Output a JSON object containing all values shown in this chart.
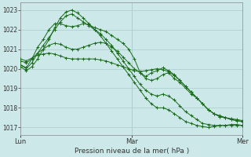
{
  "xlabel": "Pression niveau de la mer( hPa )",
  "background_color": "#cce8e8",
  "grid_color": "#aacccc",
  "line_color": "#1a6b1a",
  "ylim": [
    1016.6,
    1023.4
  ],
  "yticks": [
    1017,
    1018,
    1019,
    1020,
    1021,
    1022,
    1023
  ],
  "xlim": [
    0,
    96
  ],
  "xtick_positions": [
    0,
    48,
    96
  ],
  "xtick_labels": [
    "Lun",
    "Mar",
    "Mer"
  ],
  "series": [
    [
      1020.2,
      1020.05,
      1020.5,
      1021.1,
      1021.5,
      1022.0,
      1022.3,
      1022.3,
      1022.2,
      1022.15,
      1022.2,
      1022.3,
      1022.25,
      1022.1,
      1022.0,
      1021.9,
      1021.7,
      1021.5,
      1021.3,
      1021.0,
      1020.5,
      1019.8,
      1019.5,
      1019.4,
      1019.5,
      1019.7,
      1019.8,
      1019.5,
      1019.3,
      1019.0,
      1018.7,
      1018.5,
      1018.2,
      1017.9,
      1017.7,
      1017.6,
      1017.5,
      1017.4,
      1017.35,
      1017.3
    ],
    [
      1020.2,
      1020.0,
      1020.3,
      1020.8,
      1021.2,
      1021.6,
      1022.0,
      1022.4,
      1022.7,
      1022.8,
      1022.6,
      1022.4,
      1022.2,
      1022.0,
      1021.8,
      1021.5,
      1021.2,
      1020.8,
      1020.4,
      1020.0,
      1019.6,
      1019.2,
      1018.9,
      1018.7,
      1018.6,
      1018.7,
      1018.6,
      1018.4,
      1018.1,
      1017.8,
      1017.6,
      1017.4,
      1017.2,
      1017.15,
      1017.1,
      1017.1,
      1017.1,
      1017.15,
      1017.15,
      1017.1
    ],
    [
      1020.1,
      1019.9,
      1020.1,
      1020.5,
      1021.0,
      1021.5,
      1022.1,
      1022.6,
      1022.9,
      1023.0,
      1022.85,
      1022.6,
      1022.3,
      1022.0,
      1021.7,
      1021.3,
      1020.9,
      1020.5,
      1020.1,
      1019.7,
      1019.3,
      1018.9,
      1018.5,
      1018.2,
      1018.0,
      1018.0,
      1017.9,
      1017.7,
      1017.5,
      1017.3,
      1017.2,
      1017.1,
      1017.05,
      1017.0,
      1017.05,
      1017.1,
      1017.1,
      1017.1,
      1017.1,
      1017.1
    ],
    [
      1020.4,
      1020.3,
      1020.5,
      1020.8,
      1021.0,
      1021.2,
      1021.3,
      1021.25,
      1021.1,
      1021.0,
      1021.0,
      1021.1,
      1021.2,
      1021.3,
      1021.35,
      1021.3,
      1021.1,
      1020.9,
      1020.6,
      1020.3,
      1020.0,
      1019.8,
      1019.6,
      1019.8,
      1019.9,
      1020.05,
      1019.9,
      1019.7,
      1019.4,
      1019.1,
      1018.8,
      1018.5,
      1018.2,
      1017.9,
      1017.7,
      1017.55,
      1017.5,
      1017.45,
      1017.4,
      1017.35
    ],
    [
      1020.5,
      1020.4,
      1020.55,
      1020.7,
      1020.75,
      1020.8,
      1020.75,
      1020.65,
      1020.55,
      1020.5,
      1020.5,
      1020.5,
      1020.5,
      1020.5,
      1020.45,
      1020.4,
      1020.3,
      1020.2,
      1020.1,
      1020.0,
      1019.9,
      1019.85,
      1019.9,
      1019.95,
      1020.0,
      1019.95,
      1019.85,
      1019.65,
      1019.4,
      1019.1,
      1018.8,
      1018.5,
      1018.2,
      1017.9,
      1017.7,
      1017.55,
      1017.5,
      1017.4,
      1017.35,
      1017.3
    ]
  ]
}
